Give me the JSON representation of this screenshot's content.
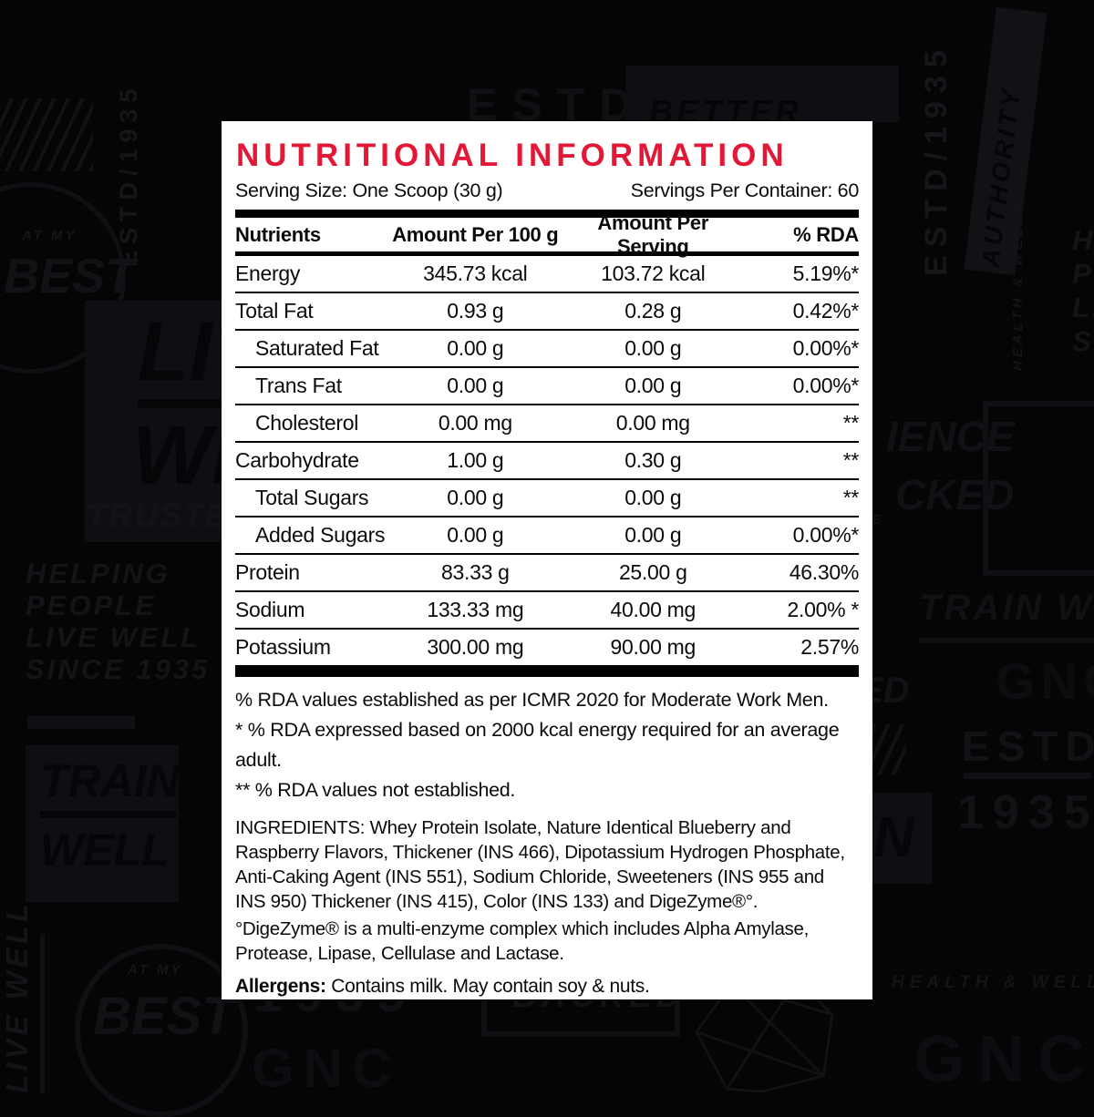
{
  "panel": {
    "title": "NUTRITIONAL INFORMATION",
    "serving_size": "Serving Size: One Scoop (30 g)",
    "servings_per_container": "Servings Per Container: 60",
    "table": {
      "headers": [
        "Nutrients",
        "Amount Per 100 g",
        "Amount Per Serving",
        "% RDA"
      ],
      "rows": [
        {
          "nutrient": "Energy",
          "per_100g": "345.73 kcal",
          "per_serving": "103.72 kcal",
          "rda": "5.19%*",
          "indent": false
        },
        {
          "nutrient": "Total Fat",
          "per_100g": "0.93 g",
          "per_serving": "0.28 g",
          "rda": "0.42%*",
          "indent": false
        },
        {
          "nutrient": "Saturated Fat",
          "per_100g": "0.00 g",
          "per_serving": "0.00 g",
          "rda": "0.00%*",
          "indent": true
        },
        {
          "nutrient": "Trans Fat",
          "per_100g": "0.00 g",
          "per_serving": "0.00 g",
          "rda": "0.00%*",
          "indent": true
        },
        {
          "nutrient": "Cholesterol",
          "per_100g": "0.00 mg",
          "per_serving": "0.00 mg",
          "rda": "**",
          "indent": true
        },
        {
          "nutrient": "Carbohydrate",
          "per_100g": "1.00 g",
          "per_serving": "0.30 g",
          "rda": "**",
          "indent": false
        },
        {
          "nutrient": "Total Sugars",
          "per_100g": "0.00 g",
          "per_serving": "0.00 g",
          "rda": "**",
          "indent": true
        },
        {
          "nutrient": "Added Sugars",
          "per_100g": "0.00 g",
          "per_serving": "0.00 g",
          "rda": "0.00%*",
          "indent": true
        },
        {
          "nutrient": "Protein",
          "per_100g": "83.33 g",
          "per_serving": "25.00 g",
          "rda": "46.30%",
          "indent": false
        },
        {
          "nutrient": "Sodium",
          "per_100g": "133.33 mg",
          "per_serving": "40.00 mg",
          "rda": "2.00% *",
          "indent": false
        },
        {
          "nutrient": "Potassium",
          "per_100g": "300.00 mg",
          "per_serving": "90.00 mg",
          "rda": "2.57%",
          "indent": false
        }
      ]
    },
    "footnotes": [
      "% RDA values established as per ICMR 2020 for Moderate Work Men.",
      "* % RDA expressed based on 2000 kcal energy required for an average adult.",
      "** % RDA values not established."
    ],
    "ingredients_label": "INGREDIENTS:",
    "ingredients_text": " Whey Protein Isolate, Nature Identical Blueberry and Raspberry Flavors, Thickener (INS 466), Dipotassium Hydrogen Phosphate, Anti-Caking Agent (INS 551), Sodium Chloride, Sweeteners (INS 955 and INS 950) Thickener (INS 415), Color (INS 133) and DigeZyme®°.",
    "digezyme_note": "°DigeZyme® is a multi-enzyme complex which includes Alpha Amylase, Protease, Lipase, Cellulase and Lactase.",
    "allergens_label": "Allergens:",
    "allergens_text": " Contains milk. May contain soy & nuts."
  },
  "background": {
    "estd_1935_vertical": "ESTD/1935",
    "estd_top": "ESTD",
    "better": "BETTER",
    "authority": "AUTHORITY",
    "at_my": "AT MY",
    "best": "BEST",
    "li": "LIVE",
    "w": "WELL",
    "trust": "TRUSTED",
    "helping_lines": [
      "HELPING",
      "PEOPLE",
      "LIVE WELL",
      "SINCE 1935"
    ],
    "train": "TRAIN",
    "well": "WELL",
    "live_well_vertical": "LIVE WELL",
    "year": "1935",
    "gnc": "GNC",
    "backed": "BACKED",
    "health_wellness": "HEALTH & WELLNESS",
    "train_well": "TRAIN WELL",
    "estd": "ESTD",
    "ience": "IENCE",
    "cked": "CKED",
    "ed": "ED",
    "re": "RE",
    "n": "N"
  },
  "colors": {
    "accent_red": "#e31837",
    "page_bg": "#050506",
    "panel_bg": "#ffffff",
    "faint_motif": "#16161a"
  }
}
